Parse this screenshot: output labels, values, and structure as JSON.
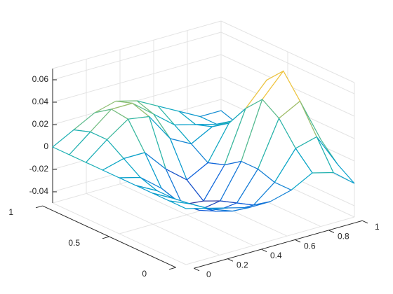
{
  "chart_data": {
    "type": "mesh",
    "x": [
      0,
      0.125,
      0.25,
      0.375,
      0.5,
      0.625,
      0.75,
      0.875,
      1
    ],
    "y": [
      0,
      0.125,
      0.25,
      0.375,
      0.5,
      0.625,
      0.75,
      0.875,
      1
    ],
    "z": [
      [
        0,
        -0.005,
        -0.01,
        -0.015,
        -0.015,
        -0.01,
        0.0,
        -0.005,
        -0.02
      ],
      [
        0,
        -0.008,
        -0.018,
        -0.025,
        -0.025,
        -0.01,
        0.015,
        0.02,
        -0.01
      ],
      [
        0,
        -0.01,
        -0.022,
        -0.032,
        -0.03,
        -0.005,
        0.035,
        0.045,
        0.005
      ],
      [
        0,
        -0.01,
        -0.025,
        -0.038,
        -0.035,
        -0.005,
        0.045,
        0.065,
        0.015
      ],
      [
        0,
        -0.005,
        -0.02,
        -0.04,
        -0.042,
        -0.015,
        0.03,
        0.05,
        0.01
      ],
      [
        0,
        0.005,
        0.005,
        -0.015,
        -0.03,
        -0.02,
        0.01,
        0.02,
        -0.005
      ],
      [
        0,
        0.015,
        0.028,
        0.025,
        0.0,
        -0.01,
        0.0,
        0.0,
        -0.01
      ],
      [
        0,
        0.015,
        0.03,
        0.03,
        0.015,
        0.0,
        -0.005,
        -0.01,
        -0.015
      ],
      [
        0,
        0.01,
        0.02,
        0.025,
        0.02,
        0.01,
        0.0,
        -0.01,
        -0.01
      ]
    ],
    "xlim": [
      0,
      1
    ],
    "ylim": [
      0,
      1
    ],
    "zlim": [
      -0.05,
      0.07
    ],
    "xticks": [
      0,
      0.2,
      0.4,
      0.6,
      0.8,
      1
    ],
    "yticks": [
      0,
      0.5,
      1
    ],
    "zticks": [
      -0.04,
      -0.02,
      0,
      0.02,
      0.04,
      0.06
    ],
    "grid": true,
    "colormap": [
      "#352a87",
      "#0f5cdd",
      "#1481d6",
      "#06a4ca",
      "#2eb7a4",
      "#87bf77",
      "#d1bb59",
      "#fec832",
      "#f9fb0e"
    ]
  }
}
